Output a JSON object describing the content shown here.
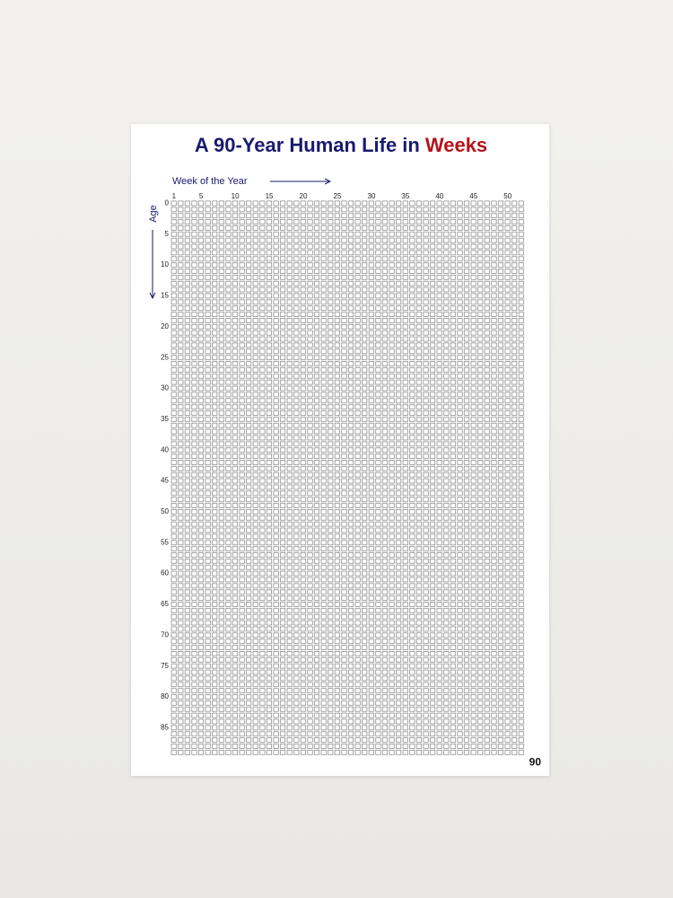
{
  "title": {
    "main": "A 90-Year Human Life in",
    "highlight": "Weeks"
  },
  "x_axis": {
    "label": "Week of the Year",
    "ticks": [
      1,
      5,
      10,
      15,
      20,
      25,
      30,
      35,
      40,
      45,
      50
    ]
  },
  "y_axis": {
    "label": "Age",
    "ticks": [
      0,
      5,
      10,
      15,
      20,
      25,
      30,
      35,
      40,
      45,
      50,
      55,
      60,
      65,
      70,
      75,
      80,
      85
    ]
  },
  "end_label": 90
}
